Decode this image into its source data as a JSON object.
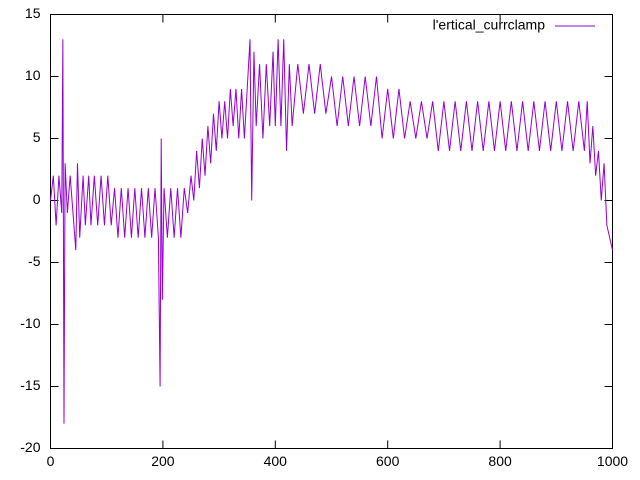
{
  "chart_data": {
    "type": "line",
    "x": [
      0,
      5,
      10,
      15,
      20,
      22,
      24,
      26,
      30,
      35,
      40,
      45,
      48,
      52,
      58,
      62,
      68,
      72,
      78,
      84,
      90,
      96,
      102,
      108,
      114,
      120,
      126,
      132,
      138,
      144,
      150,
      156,
      162,
      168,
      174,
      180,
      186,
      192,
      195,
      197,
      199,
      202,
      208,
      214,
      220,
      226,
      232,
      238,
      244,
      250,
      255,
      260,
      265,
      270,
      275,
      280,
      285,
      290,
      295,
      300,
      305,
      310,
      315,
      320,
      325,
      330,
      335,
      340,
      345,
      350,
      355,
      358,
      362,
      366,
      372,
      378,
      384,
      390,
      396,
      400,
      405,
      410,
      415,
      420,
      425,
      430,
      440,
      450,
      460,
      470,
      480,
      490,
      500,
      510,
      520,
      530,
      540,
      550,
      560,
      570,
      580,
      590,
      600,
      610,
      620,
      630,
      640,
      650,
      660,
      670,
      680,
      690,
      700,
      710,
      720,
      730,
      740,
      750,
      760,
      770,
      780,
      790,
      800,
      810,
      820,
      830,
      840,
      850,
      860,
      870,
      880,
      890,
      900,
      910,
      920,
      930,
      940,
      950,
      955,
      960,
      965,
      970,
      975,
      980,
      985,
      990,
      995,
      1000
    ],
    "series": [
      {
        "name": "l'ertical_currclamp",
        "color": "#9400d3",
        "values": [
          0,
          2,
          -2,
          2,
          -1,
          13,
          -18,
          3,
          -1,
          2,
          -1,
          -4,
          3,
          -3,
          2,
          -2,
          2,
          -2,
          2,
          -2,
          2,
          -2,
          2,
          -2,
          1,
          -3,
          1,
          -3,
          1,
          -3,
          1,
          -3,
          1,
          -3,
          1,
          -3,
          1,
          -3,
          -15,
          5,
          -8,
          1,
          -3,
          1,
          -3,
          1,
          -3,
          1,
          -1,
          2,
          0,
          4,
          1,
          5,
          2,
          6,
          3,
          7,
          4,
          8,
          5,
          8,
          5,
          9,
          6,
          9,
          5,
          9,
          5,
          9,
          13,
          0,
          12,
          6,
          11,
          5,
          11,
          6,
          12,
          6,
          13,
          6,
          13,
          4,
          11,
          6,
          11,
          7,
          11,
          7,
          11,
          7,
          10,
          6,
          10,
          6,
          10,
          6,
          10,
          6,
          10,
          5,
          9,
          5,
          9,
          5,
          8,
          5,
          8,
          5,
          8,
          4,
          8,
          4,
          8,
          4,
          8,
          4,
          8,
          4,
          8,
          4,
          8,
          4,
          8,
          4,
          8,
          4,
          8,
          4,
          8,
          4,
          8,
          4,
          8,
          4,
          8,
          4,
          8,
          3,
          6,
          2,
          4,
          0,
          3,
          -2,
          -3,
          -4
        ]
      }
    ],
    "xlim": [
      0,
      1000
    ],
    "ylim": [
      -20,
      15
    ],
    "xticks": [
      0,
      200,
      400,
      600,
      800,
      1000
    ],
    "yticks": [
      -20,
      -15,
      -10,
      -5,
      0,
      5,
      10,
      15
    ]
  }
}
